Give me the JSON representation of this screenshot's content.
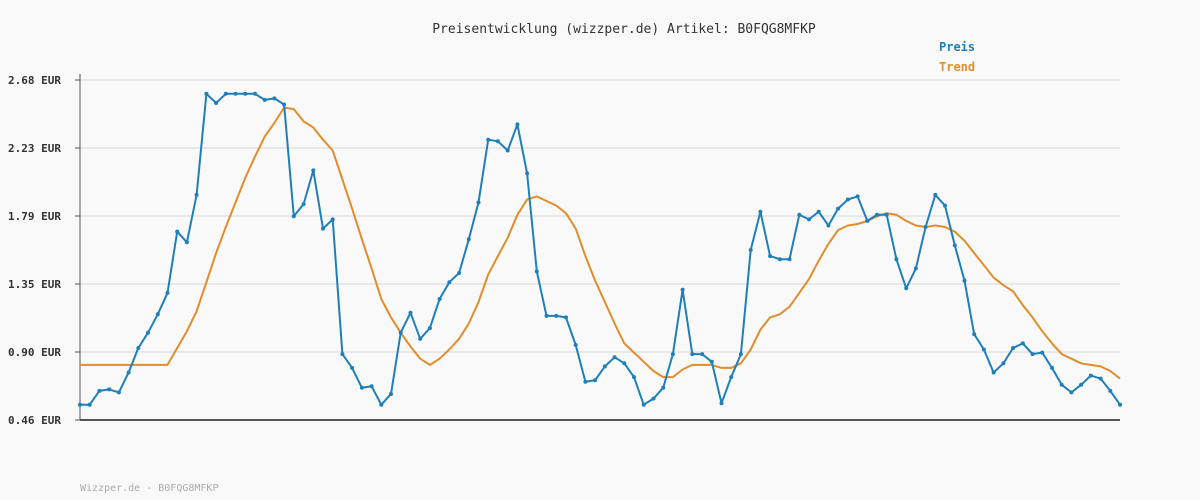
{
  "chart_data": {
    "type": "line",
    "title": "Preisentwicklung (wizzper.de) Artikel: B0FQG8MFKP",
    "xlabel": "",
    "ylabel": "",
    "ylim": [
      0.46,
      2.68
    ],
    "y_ticks": [
      "2.68 EUR",
      "2.23 EUR",
      "1.79 EUR",
      "1.35 EUR",
      "0.90 EUR",
      "0.46 EUR"
    ],
    "grid": true,
    "legend_position": "top-right",
    "series": [
      {
        "name": "Preis",
        "color": "#1f7fb8",
        "values": [
          0.56,
          0.56,
          0.65,
          0.66,
          0.64,
          0.77,
          0.93,
          1.03,
          1.15,
          1.29,
          1.69,
          1.62,
          1.93,
          2.59,
          2.53,
          2.59,
          2.59,
          2.59,
          2.59,
          2.55,
          2.56,
          2.52,
          1.79,
          1.87,
          2.09,
          1.71,
          1.77,
          0.89,
          0.8,
          0.67,
          0.68,
          0.56,
          0.63,
          1.03,
          1.16,
          0.99,
          1.06,
          1.25,
          1.36,
          1.42,
          1.64,
          1.88,
          2.29,
          2.28,
          2.22,
          2.39,
          2.07,
          1.43,
          1.14,
          1.14,
          1.13,
          0.95,
          0.71,
          0.72,
          0.81,
          0.87,
          0.83,
          0.74,
          0.56,
          0.6,
          0.67,
          0.89,
          1.31,
          0.89,
          0.89,
          0.84,
          0.57,
          0.74,
          0.89,
          1.57,
          1.82,
          1.53,
          1.51,
          1.51,
          1.8,
          1.77,
          1.82,
          1.73,
          1.84,
          1.9,
          1.92,
          1.76,
          1.8,
          1.8,
          1.51,
          1.32,
          1.45,
          1.72,
          1.93,
          1.86,
          1.6,
          1.37,
          1.02,
          0.92,
          0.77,
          0.83,
          0.93,
          0.96,
          0.89,
          0.9,
          0.8,
          0.69,
          0.64,
          0.69,
          0.75,
          0.73,
          0.65,
          0.56
        ]
      },
      {
        "name": "Trend",
        "color": "#e08e2c",
        "values": [
          0.82,
          0.82,
          0.82,
          0.82,
          0.82,
          0.82,
          0.82,
          0.82,
          0.82,
          0.82,
          0.93,
          1.04,
          1.17,
          1.36,
          1.55,
          1.72,
          1.88,
          2.04,
          2.18,
          2.31,
          2.4,
          2.5,
          2.49,
          2.41,
          2.37,
          2.29,
          2.22,
          2.03,
          1.84,
          1.64,
          1.45,
          1.25,
          1.13,
          1.03,
          0.94,
          0.86,
          0.82,
          0.86,
          0.92,
          0.99,
          1.09,
          1.23,
          1.41,
          1.53,
          1.65,
          1.8,
          1.9,
          1.92,
          1.89,
          1.86,
          1.81,
          1.71,
          1.53,
          1.37,
          1.23,
          1.09,
          0.96,
          0.9,
          0.84,
          0.78,
          0.74,
          0.74,
          0.79,
          0.82,
          0.82,
          0.82,
          0.8,
          0.8,
          0.83,
          0.92,
          1.05,
          1.13,
          1.15,
          1.2,
          1.29,
          1.38,
          1.5,
          1.61,
          1.7,
          1.73,
          1.74,
          1.76,
          1.79,
          1.81,
          1.8,
          1.76,
          1.73,
          1.72,
          1.73,
          1.72,
          1.69,
          1.63,
          1.55,
          1.47,
          1.39,
          1.34,
          1.3,
          1.21,
          1.13,
          1.04,
          0.96,
          0.89,
          0.86,
          0.83,
          0.82,
          0.81,
          0.78,
          0.73
        ]
      }
    ]
  },
  "footer": "Wizzper.de - B0FQG8MFKP"
}
